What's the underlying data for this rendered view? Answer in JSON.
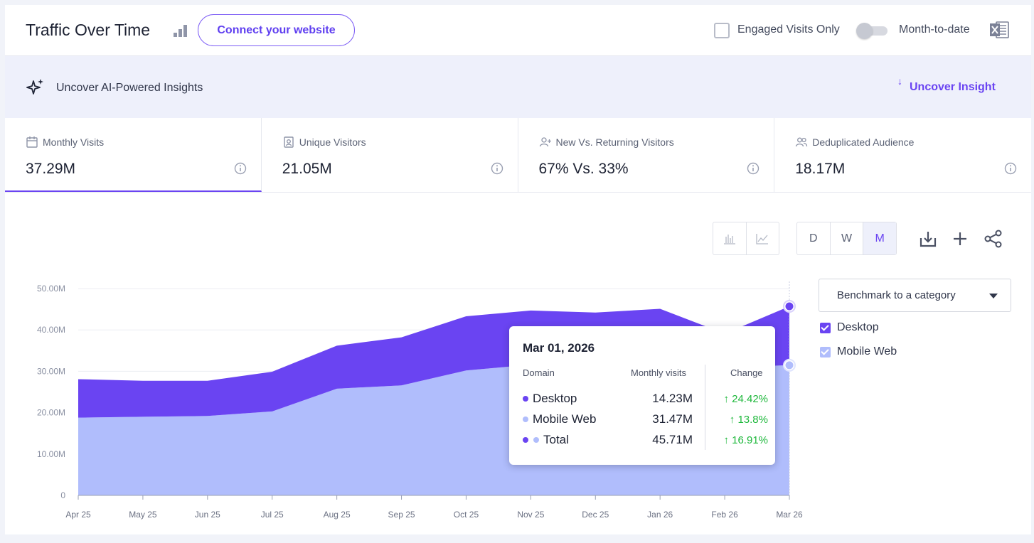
{
  "header": {
    "title": "Traffic Over Time",
    "connect_label": "Connect your website",
    "engaged_label": "Engaged Visits Only",
    "mtd_label": "Month-to-date"
  },
  "insights": {
    "label": "Uncover AI-Powered Insights",
    "button_label": "Uncover Insight"
  },
  "metrics": [
    {
      "label": "Monthly Visits",
      "value": "37.29M",
      "icon": "calendar-icon"
    },
    {
      "label": "Unique Visitors",
      "value": "21.05M",
      "icon": "person-card-icon"
    },
    {
      "label": "New Vs. Returning Visitors",
      "value": "67% Vs. 33%",
      "icon": "user-plus-icon"
    },
    {
      "label": "Deduplicated Audience",
      "value": "18.17M",
      "icon": "users-icon"
    }
  ],
  "granularity": [
    "D",
    "W",
    "M"
  ],
  "benchmark_label": "Benchmark to a category",
  "legend": [
    {
      "name": "Desktop",
      "color": "#6a44f2"
    },
    {
      "name": "Mobile Web",
      "color": "#b0bdfc"
    }
  ],
  "tooltip": {
    "date": "Mar 01, 2026",
    "col_domain": "Domain",
    "col_visits": "Monthly visits",
    "col_change": "Change",
    "rows": [
      {
        "name": "Desktop",
        "value": "14.23M",
        "change": "24.42%"
      },
      {
        "name": "Mobile Web",
        "value": "31.47M",
        "change": "13.8%"
      },
      {
        "name": "Total",
        "value": "45.71M",
        "change": "16.91%"
      }
    ]
  },
  "chart_data": {
    "type": "area",
    "stacked": true,
    "categories": [
      "Apr 25",
      "May 25",
      "Jun 25",
      "Jul 25",
      "Aug 25",
      "Sep 25",
      "Oct 25",
      "Nov 25",
      "Dec 25",
      "Jan 26",
      "Feb 26",
      "Mar 26"
    ],
    "y_ticks": [
      "0",
      "10.00M",
      "20.00M",
      "30.00M",
      "40.00M",
      "50.00M"
    ],
    "ylim": [
      0,
      50
    ],
    "series": [
      {
        "name": "Mobile Web",
        "color": "#b0bdfc",
        "values": [
          18.8,
          19.0,
          19.2,
          20.3,
          25.8,
          26.6,
          30.2,
          31.6,
          32.0,
          32.2,
          31.0,
          31.47
        ]
      },
      {
        "name": "Desktop",
        "color": "#6a44f2",
        "values": [
          9.3,
          8.7,
          8.5,
          9.6,
          10.4,
          11.6,
          13.1,
          13.1,
          12.2,
          12.9,
          8.1,
          14.23
        ]
      }
    ],
    "grid": true
  }
}
